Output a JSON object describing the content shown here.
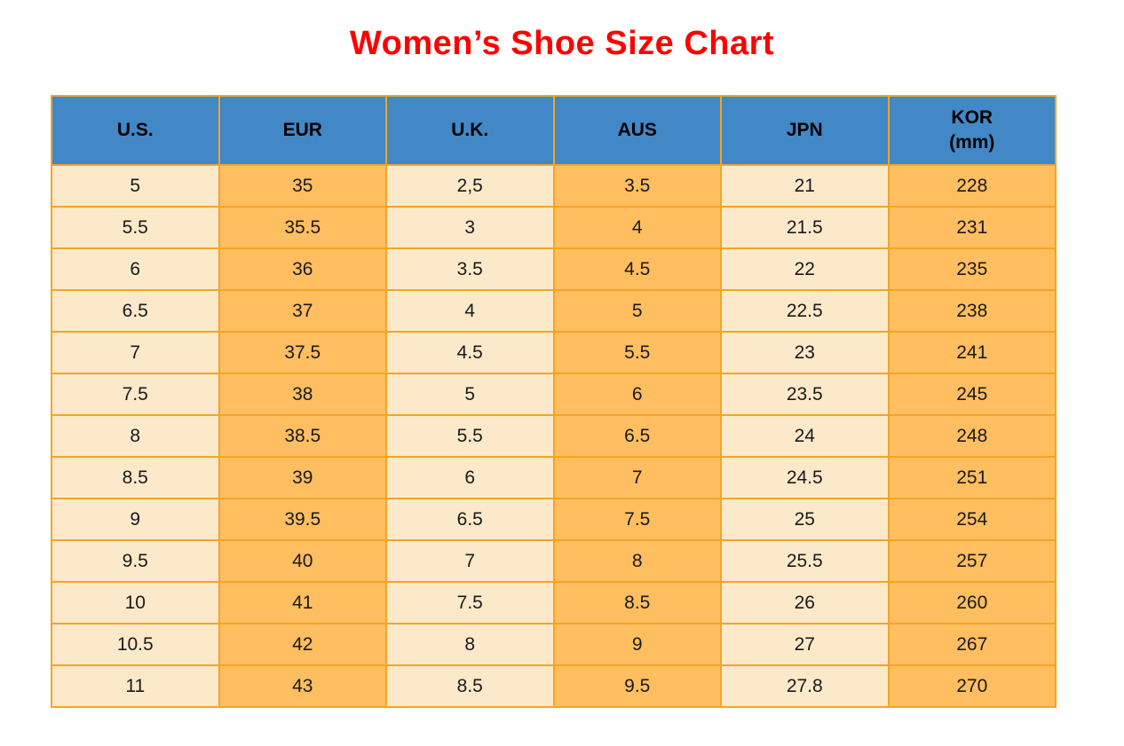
{
  "title": "Women’s Shoe Size Chart",
  "colors": {
    "title_red": "#fe0000",
    "header_blue": "#4287c6",
    "cell_cream": "#fce9ca",
    "cell_orange": "#ffbe60",
    "border_orange": "#f4a427",
    "header_text": "#000000",
    "cell_text": "#1a1a1a"
  },
  "table": {
    "headers": [
      {
        "line1": "U.S.",
        "line2": ""
      },
      {
        "line1": "EUR",
        "line2": ""
      },
      {
        "line1": "U.K.",
        "line2": ""
      },
      {
        "line1": "AUS",
        "line2": ""
      },
      {
        "line1": "JPN",
        "line2": ""
      },
      {
        "line1": "KOR",
        "line2": "(mm)"
      }
    ],
    "rows": [
      [
        "5",
        "35",
        "2,5",
        "3.5",
        "21",
        "228"
      ],
      [
        "5.5",
        "35.5",
        "3",
        "4",
        "21.5",
        "231"
      ],
      [
        "6",
        "36",
        "3.5",
        "4.5",
        "22",
        "235"
      ],
      [
        "6.5",
        "37",
        "4",
        "5",
        "22.5",
        "238"
      ],
      [
        "7",
        "37.5",
        "4.5",
        "5.5",
        "23",
        "241"
      ],
      [
        "7.5",
        "38",
        "5",
        "6",
        "23.5",
        "245"
      ],
      [
        "8",
        "38.5",
        "5.5",
        "6.5",
        "24",
        "248"
      ],
      [
        "8.5",
        "39",
        "6",
        "7",
        "24.5",
        "251"
      ],
      [
        "9",
        "39.5",
        "6.5",
        "7.5",
        "25",
        "254"
      ],
      [
        "9.5",
        "40",
        "7",
        "8",
        "25.5",
        "257"
      ],
      [
        "10",
        "41",
        "7.5",
        "8.5",
        "26",
        "260"
      ],
      [
        "10.5",
        "42",
        "8",
        "9",
        "27",
        "267"
      ],
      [
        "11",
        "43",
        "8.5",
        "9.5",
        "27.8",
        "270"
      ]
    ]
  },
  "chart_data": {
    "type": "table",
    "title": "Women’s Shoe Size Chart",
    "columns": [
      "U.S.",
      "EUR",
      "U.K.",
      "AUS",
      "JPN",
      "KOR (mm)"
    ],
    "rows": [
      [
        "5",
        "35",
        "2,5",
        "3.5",
        "21",
        "228"
      ],
      [
        "5.5",
        "35.5",
        "3",
        "4",
        "21.5",
        "231"
      ],
      [
        "6",
        "36",
        "3.5",
        "4.5",
        "22",
        "235"
      ],
      [
        "6.5",
        "37",
        "4",
        "5",
        "22.5",
        "238"
      ],
      [
        "7",
        "37.5",
        "4.5",
        "5.5",
        "23",
        "241"
      ],
      [
        "7.5",
        "38",
        "5",
        "6",
        "23.5",
        "245"
      ],
      [
        "8",
        "38.5",
        "5.5",
        "6.5",
        "24",
        "248"
      ],
      [
        "8.5",
        "39",
        "6",
        "7",
        "24.5",
        "251"
      ],
      [
        "9",
        "39.5",
        "6.5",
        "7.5",
        "25",
        "254"
      ],
      [
        "9.5",
        "40",
        "7",
        "8",
        "25.5",
        "257"
      ],
      [
        "10",
        "41",
        "7.5",
        "8.5",
        "26",
        "260"
      ],
      [
        "10.5",
        "42",
        "8",
        "9",
        "27",
        "267"
      ],
      [
        "11",
        "43",
        "8.5",
        "9.5",
        "27.8",
        "270"
      ]
    ]
  }
}
